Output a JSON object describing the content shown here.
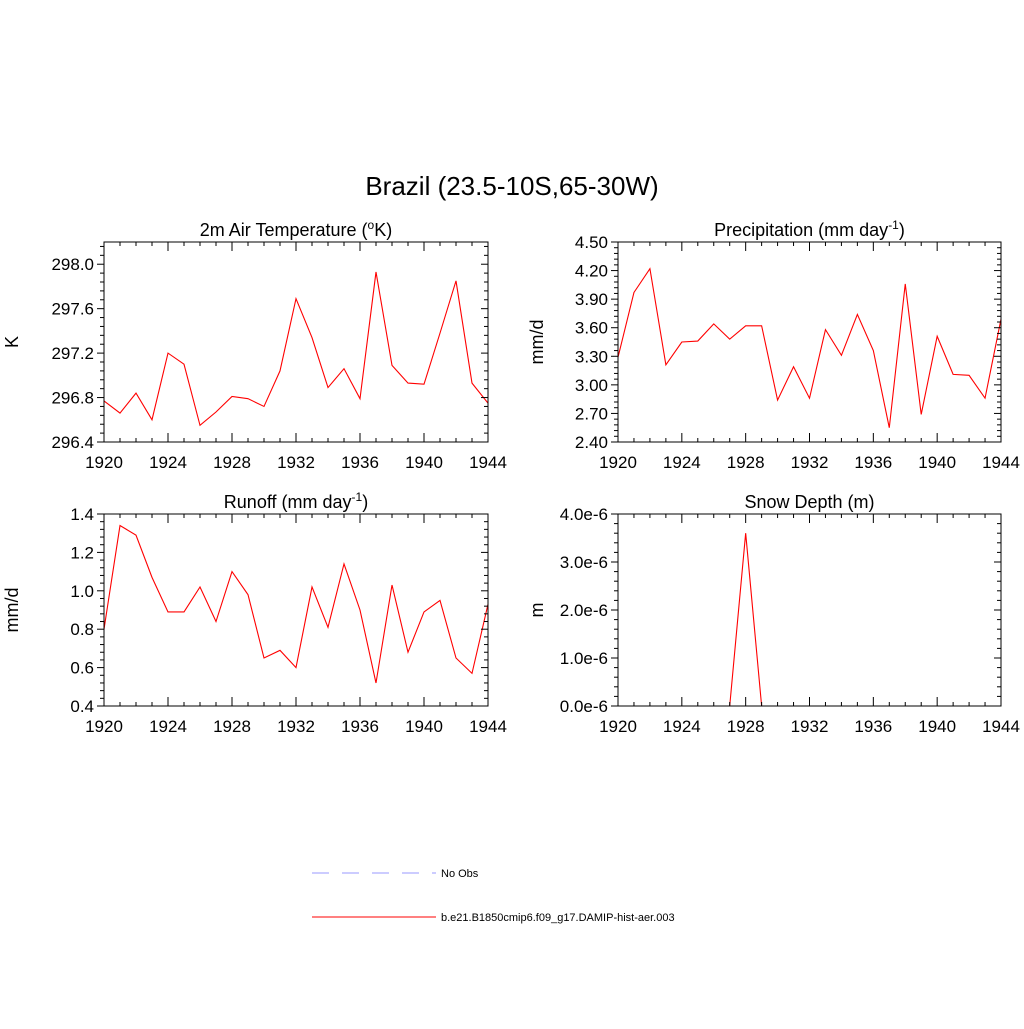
{
  "title": "Brazil (23.5-10S,65-30W)",
  "chart_data": [
    {
      "type": "line",
      "title": "2m Air Temperature (",
      "title_sup": "o",
      "title_end": "K)",
      "ylabel": "K",
      "xlim": [
        1920,
        1944
      ],
      "ylim": [
        296.4,
        298.2
      ],
      "xticks": [
        1920,
        1924,
        1928,
        1932,
        1936,
        1940,
        1944
      ],
      "xticklabels": [
        "1920",
        "1924",
        "1928",
        "1932",
        "1936",
        "1940",
        "1944"
      ],
      "yticks": [
        296.4,
        296.8,
        297.2,
        297.6,
        298.0
      ],
      "yticklabels": [
        "296.4",
        "296.8",
        "297.2",
        "297.6",
        "298.0"
      ],
      "series": [
        {
          "color": "#ff0000",
          "x": [
            1920,
            1921,
            1922,
            1923,
            1924,
            1925,
            1926,
            1927,
            1928,
            1929,
            1930,
            1931,
            1932,
            1933,
            1934,
            1935,
            1936,
            1937,
            1938,
            1939,
            1940,
            1941,
            1942,
            1943,
            1944
          ],
          "values": [
            296.77,
            296.66,
            296.84,
            296.6,
            297.2,
            297.1,
            296.55,
            296.67,
            296.81,
            296.79,
            296.72,
            297.04,
            297.69,
            297.34,
            296.89,
            297.06,
            296.79,
            297.93,
            297.09,
            296.93,
            296.92,
            297.38,
            297.85,
            296.93,
            296.75
          ]
        }
      ]
    },
    {
      "type": "line",
      "title": "Precipitation (mm day",
      "title_sup": "-1",
      "title_end": ")",
      "ylabel": "mm/d",
      "xlim": [
        1920,
        1944
      ],
      "ylim": [
        2.4,
        4.5
      ],
      "xticks": [
        1920,
        1924,
        1928,
        1932,
        1936,
        1940,
        1944
      ],
      "xticklabels": [
        "1920",
        "1924",
        "1928",
        "1932",
        "1936",
        "1940",
        "1944"
      ],
      "yticks": [
        2.4,
        2.7,
        3.0,
        3.3,
        3.6,
        3.9,
        4.2,
        4.5
      ],
      "yticklabels": [
        "2.40",
        "2.70",
        "3.00",
        "3.30",
        "3.60",
        "3.90",
        "4.20",
        "4.50"
      ],
      "series": [
        {
          "color": "#ff0000",
          "x": [
            1920,
            1921,
            1922,
            1923,
            1924,
            1925,
            1926,
            1927,
            1928,
            1929,
            1930,
            1931,
            1932,
            1933,
            1934,
            1935,
            1936,
            1937,
            1938,
            1939,
            1940,
            1941,
            1942,
            1943,
            1944
          ],
          "values": [
            3.29,
            3.97,
            4.22,
            3.21,
            3.45,
            3.46,
            3.64,
            3.48,
            3.62,
            3.62,
            2.84,
            3.19,
            2.86,
            3.58,
            3.31,
            3.74,
            3.36,
            2.55,
            4.06,
            2.69,
            3.51,
            3.11,
            3.1,
            2.86,
            3.69
          ]
        }
      ]
    },
    {
      "type": "line",
      "title": "Runoff (mm day",
      "title_sup": "-1",
      "title_end": ")",
      "ylabel": "mm/d",
      "xlim": [
        1920,
        1944
      ],
      "ylim": [
        0.4,
        1.4
      ],
      "xticks": [
        1920,
        1924,
        1928,
        1932,
        1936,
        1940,
        1944
      ],
      "xticklabels": [
        "1920",
        "1924",
        "1928",
        "1932",
        "1936",
        "1940",
        "1944"
      ],
      "yticks": [
        0.4,
        0.6,
        0.8,
        1.0,
        1.2,
        1.4
      ],
      "yticklabels": [
        "0.4",
        "0.6",
        "0.8",
        "1.0",
        "1.2",
        "1.4"
      ],
      "series": [
        {
          "color": "#ff0000",
          "x": [
            1920,
            1921,
            1922,
            1923,
            1924,
            1925,
            1926,
            1927,
            1928,
            1929,
            1930,
            1931,
            1932,
            1933,
            1934,
            1935,
            1936,
            1937,
            1938,
            1939,
            1940,
            1941,
            1942,
            1943,
            1944
          ],
          "values": [
            0.8,
            1.34,
            1.29,
            1.07,
            0.89,
            0.89,
            1.02,
            0.84,
            1.1,
            0.98,
            0.65,
            0.69,
            0.6,
            1.02,
            0.81,
            1.14,
            0.9,
            0.52,
            1.03,
            0.68,
            0.89,
            0.95,
            0.65,
            0.57,
            0.93
          ]
        }
      ]
    },
    {
      "type": "line",
      "title": "Snow Depth (m)",
      "title_sup": "",
      "title_end": "",
      "ylabel": "m",
      "xlim": [
        1920,
        1944
      ],
      "ylim": [
        0,
        4e-06
      ],
      "xticks": [
        1920,
        1924,
        1928,
        1932,
        1936,
        1940,
        1944
      ],
      "xticklabels": [
        "1920",
        "1924",
        "1928",
        "1932",
        "1936",
        "1940",
        "1944"
      ],
      "yticks": [
        0,
        1e-06,
        2e-06,
        3e-06,
        4e-06
      ],
      "yticklabels": [
        "0.0e-6",
        "1.0e-6",
        "2.0e-6",
        "3.0e-6",
        "4.0e-6"
      ],
      "series": [
        {
          "color": "#ff0000",
          "x": [
            1920,
            1921,
            1922,
            1923,
            1924,
            1925,
            1926,
            1927,
            1928,
            1929,
            1930,
            1931,
            1932,
            1933,
            1934,
            1935,
            1936,
            1937,
            1938,
            1939,
            1940,
            1941,
            1942,
            1943,
            1944
          ],
          "values": [
            0,
            0,
            0,
            0,
            0,
            0,
            0,
            0,
            3.6e-06,
            0,
            0,
            0,
            0,
            0,
            0,
            0,
            0,
            0,
            0,
            0,
            0,
            0,
            0,
            0,
            0
          ]
        }
      ]
    }
  ],
  "legend": [
    {
      "label": "No Obs",
      "color": "#9999ff",
      "dashed": true
    },
    {
      "label": "b.e21.B1850cmip6.f09_g17.DAMIP-hist-aer.003",
      "color": "#ff0000",
      "dashed": false
    }
  ]
}
